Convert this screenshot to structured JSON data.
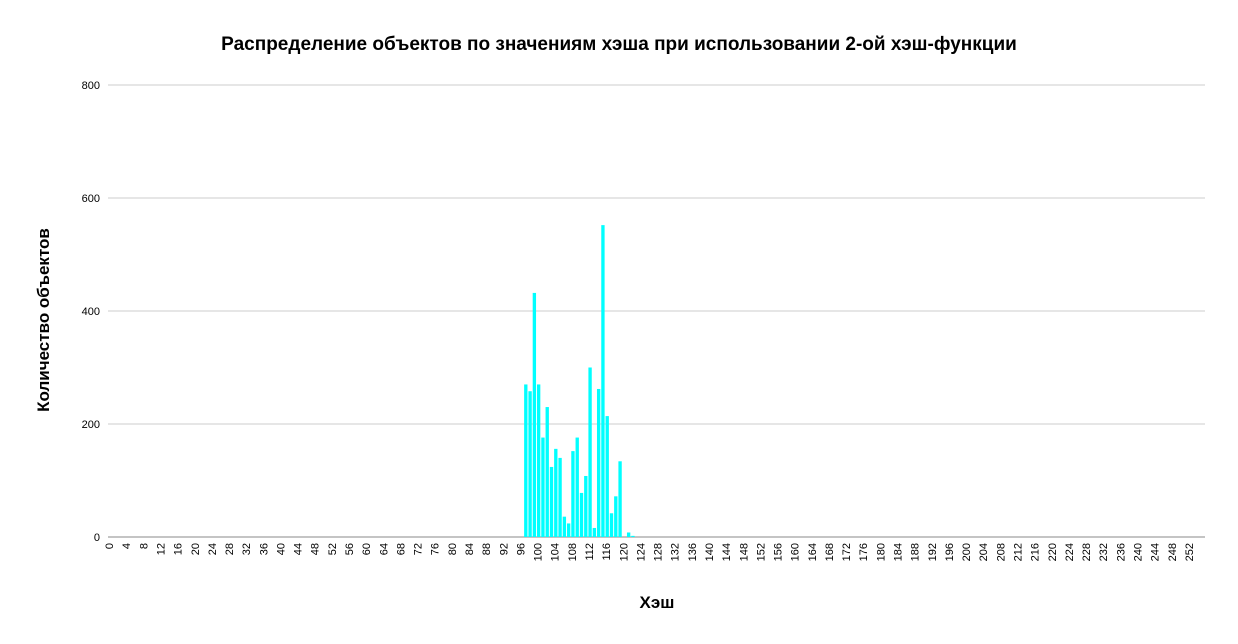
{
  "chart_data": {
    "type": "bar",
    "title": "Распределение объектов по значениям хэша при использовании 2-ой хэш-функции",
    "xlabel": "Хэш",
    "ylabel": "Количество объектов",
    "xlim": [
      0,
      255
    ],
    "ylim": [
      0,
      800
    ],
    "yticks": [
      0,
      200,
      400,
      600,
      800
    ],
    "xtick_step": 4,
    "grid": true,
    "legend": "none",
    "bar_color": "#00ffff",
    "series": [
      {
        "values": [
          {
            "x": 97,
            "y": 270
          },
          {
            "x": 98,
            "y": 258
          },
          {
            "x": 99,
            "y": 432
          },
          {
            "x": 100,
            "y": 270
          },
          {
            "x": 101,
            "y": 176
          },
          {
            "x": 102,
            "y": 230
          },
          {
            "x": 103,
            "y": 124
          },
          {
            "x": 104,
            "y": 156
          },
          {
            "x": 105,
            "y": 140
          },
          {
            "x": 106,
            "y": 36
          },
          {
            "x": 107,
            "y": 24
          },
          {
            "x": 108,
            "y": 152
          },
          {
            "x": 109,
            "y": 176
          },
          {
            "x": 110,
            "y": 78
          },
          {
            "x": 111,
            "y": 108
          },
          {
            "x": 112,
            "y": 300
          },
          {
            "x": 113,
            "y": 16
          },
          {
            "x": 114,
            "y": 262
          },
          {
            "x": 115,
            "y": 552
          },
          {
            "x": 116,
            "y": 214
          },
          {
            "x": 117,
            "y": 42
          },
          {
            "x": 118,
            "y": 72
          },
          {
            "x": 119,
            "y": 134
          },
          {
            "x": 121,
            "y": 8
          },
          {
            "x": 122,
            "y": 2
          }
        ]
      }
    ]
  }
}
